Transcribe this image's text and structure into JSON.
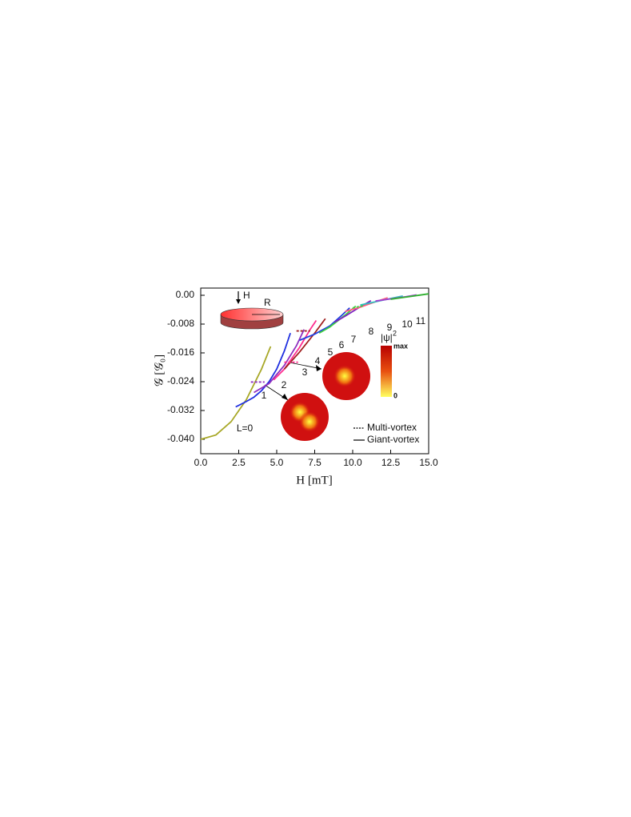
{
  "chart_data": {
    "type": "line",
    "xlabel": "H [mT]",
    "ylabel": "𝒢 [𝒢₀]",
    "xlim": [
      0,
      15
    ],
    "ylim": [
      -0.044,
      0.002
    ],
    "xticks": [
      {
        "value": 0,
        "label": "0.0"
      },
      2.5,
      {
        "value": 5,
        "label": "5.0"
      },
      7.5,
      {
        "value": 10,
        "label": "10.0"
      },
      12.5,
      {
        "value": 15,
        "label": "15.0"
      }
    ],
    "yticks": [
      {
        "value": 0,
        "label": "0.00"
      },
      -0.008,
      -0.016,
      -0.024,
      -0.032,
      {
        "value": -0.04,
        "label": "-0.040"
      }
    ],
    "legend": [
      {
        "name": "Multi-vortex",
        "style": "dashed"
      },
      {
        "name": "Giant-vortex",
        "style": "solid"
      }
    ],
    "legend_position": "lower right",
    "series": [
      {
        "name": "L=0",
        "color": "#a8a828",
        "x": [
          0,
          1,
          2,
          3,
          4,
          4.6
        ],
        "values": [
          -0.04,
          -0.0388,
          -0.0351,
          -0.029,
          -0.0205,
          -0.0142
        ]
      },
      {
        "name": "1",
        "color": "#2030e0",
        "x": [
          2.3,
          3,
          3.5,
          4,
          4.5,
          5,
          5.5,
          5.9
        ],
        "values": [
          -0.031,
          -0.0295,
          -0.0283,
          -0.0265,
          -0.024,
          -0.0205,
          -0.0155,
          -0.0105
        ]
      },
      {
        "name": "2",
        "color": "#9030c0",
        "x": [
          3.5,
          4.5,
          5.5,
          6.3,
          6.8
        ],
        "values": [
          -0.027,
          -0.0245,
          -0.0195,
          -0.014,
          -0.0095
        ]
      },
      {
        "name": "3",
        "color": "#ff3090",
        "x": [
          4.8,
          5.5,
          6.5,
          7.2,
          7.6
        ],
        "values": [
          -0.0235,
          -0.0205,
          -0.0145,
          -0.0095,
          -0.007
        ]
      },
      {
        "name": "4",
        "color": "#a02020",
        "x": [
          5.5,
          6.5,
          7.5,
          8.2
        ],
        "values": [
          -0.0205,
          -0.0158,
          -0.0105,
          -0.0065
        ]
      },
      {
        "name": "5",
        "color": "#2040e0",
        "x": [
          6.5,
          7.5,
          8.5,
          9.3,
          9.8
        ],
        "values": [
          -0.0125,
          -0.0108,
          -0.0085,
          -0.0055,
          -0.0035
        ]
      },
      {
        "name": "6",
        "color": "#40d040",
        "x": [
          7.8,
          8.5,
          9.5,
          10.2
        ],
        "values": [
          -0.0105,
          -0.0088,
          -0.0055,
          -0.003
        ]
      },
      {
        "name": "7",
        "color": "#8020c0",
        "x": [
          8.8,
          9.5,
          10.5,
          11.2
        ],
        "values": [
          -0.0075,
          -0.0058,
          -0.0032,
          -0.0015
        ]
      },
      {
        "name": "8",
        "color": "#ff6080",
        "x": [
          9.5,
          10.5,
          11.5,
          12.3
        ],
        "values": [
          -0.0045,
          -0.0033,
          -0.0018,
          -0.0007
        ]
      },
      {
        "name": "9",
        "color": "#30c0c0",
        "x": [
          10.5,
          11.5,
          12.5,
          13.3
        ],
        "values": [
          -0.0027,
          -0.0018,
          -0.0009,
          -0.0002
        ]
      },
      {
        "name": "10",
        "color": "#a040d0",
        "x": [
          11.5,
          12.5,
          13.5,
          14.2
        ],
        "values": [
          -0.0016,
          -0.001,
          -0.0004,
          0.0001
        ]
      },
      {
        "name": "11",
        "color": "#30b030",
        "x": [
          12.5,
          13.5,
          14.5,
          15
        ],
        "values": [
          -0.0011,
          -0.0005,
          0.0001,
          0.0004
        ]
      }
    ],
    "multi_vortex": [
      {
        "color": "#9030c0",
        "x": [
          3.3,
          4.2
        ],
        "values": [
          -0.0241,
          -0.0241
        ]
      },
      {
        "color": "#ff3090",
        "x": [
          5.5,
          6.4
        ],
        "values": [
          -0.0186,
          -0.0186
        ]
      },
      {
        "color": "#a02020",
        "x": [
          6.3,
          7.2
        ],
        "values": [
          -0.0099,
          -0.0099
        ]
      },
      {
        "color": "#40d040",
        "x": [
          10,
          10.7
        ],
        "values": [
          -0.0035,
          -0.0029
        ]
      }
    ],
    "inset_labels": {
      "field": "H",
      "radius": "R"
    },
    "colorbar": {
      "label": "|ψ|",
      "label_power": "2",
      "max": "max",
      "min": "0"
    }
  }
}
